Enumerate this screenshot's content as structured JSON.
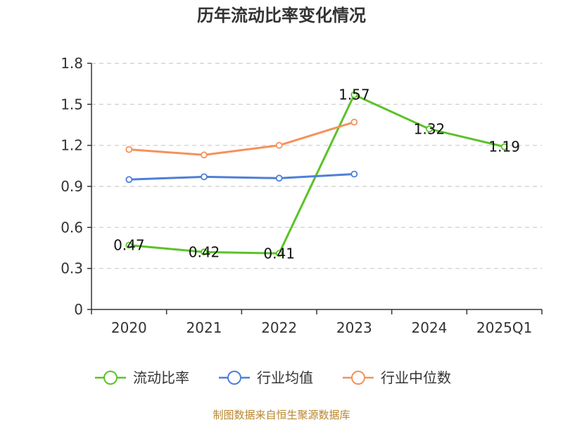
{
  "chart_data": {
    "type": "line",
    "title": "历年流动比率变化情况",
    "categories": [
      "2020",
      "2021",
      "2022",
      "2023",
      "2024",
      "2025Q1"
    ],
    "ylim": [
      0,
      1.8
    ],
    "yticks": [
      "0",
      "0.3",
      "0.6",
      "0.9",
      "1.2",
      "1.5",
      "1.8"
    ],
    "grid": true,
    "legend_position": "bottom",
    "series": [
      {
        "name": "流动比率",
        "color": "#5bc228",
        "values": [
          0.47,
          0.42,
          0.41,
          1.57,
          1.32,
          1.19
        ],
        "labels": [
          "0.47",
          "0.42",
          "0.41",
          "1.57",
          "1.32",
          "1.19"
        ]
      },
      {
        "name": "行业均值",
        "color": "#4e7fd9",
        "values": [
          0.95,
          0.97,
          0.96,
          0.99,
          null,
          null
        ]
      },
      {
        "name": "行业中位数",
        "color": "#f5915c",
        "values": [
          1.17,
          1.13,
          1.2,
          1.37,
          null,
          null
        ]
      }
    ],
    "source": "制图数据来自恒生聚源数据库"
  }
}
